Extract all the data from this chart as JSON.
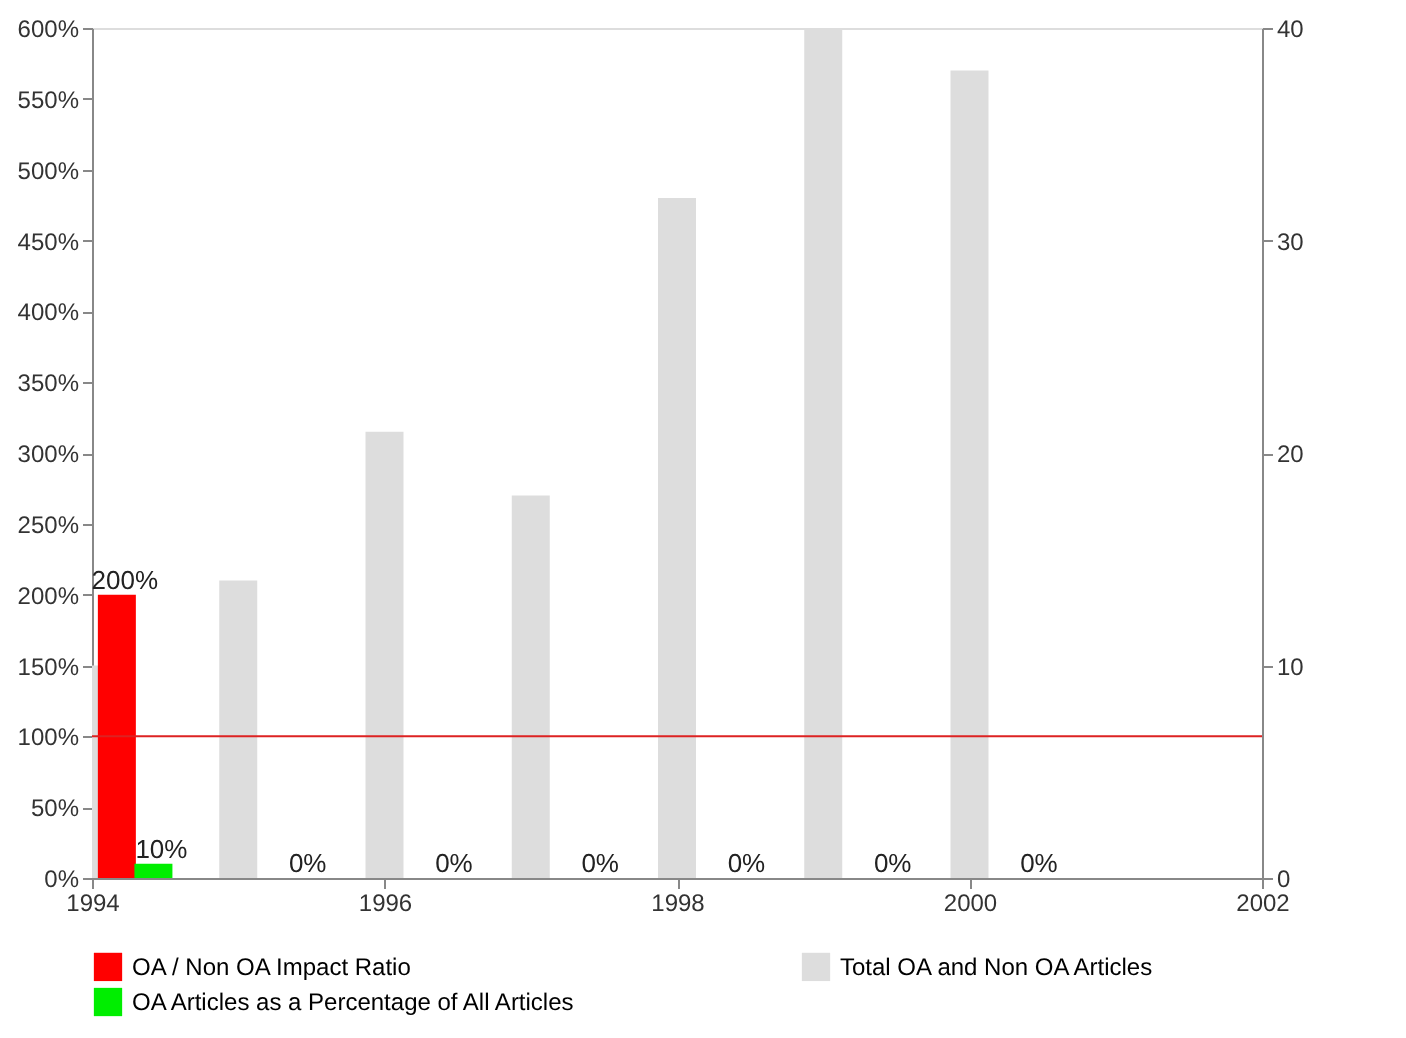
{
  "chart_data": {
    "type": "bar",
    "xlim": [
      1994,
      2002
    ],
    "xticks": [
      1994,
      1996,
      1998,
      2000,
      2002
    ],
    "ylim": [
      0,
      600
    ],
    "yticks": [
      {
        "value": 0,
        "label": "0%"
      },
      {
        "value": 50,
        "label": "50%"
      },
      {
        "value": 100,
        "label": "100%"
      },
      {
        "value": 150,
        "label": "150%"
      },
      {
        "value": 200,
        "label": "200%"
      },
      {
        "value": 250,
        "label": "250%"
      },
      {
        "value": 300,
        "label": "300%"
      },
      {
        "value": 350,
        "label": "350%"
      },
      {
        "value": 400,
        "label": "400%"
      },
      {
        "value": 450,
        "label": "450%"
      },
      {
        "value": 500,
        "label": "500%"
      },
      {
        "value": 550,
        "label": "550%"
      },
      {
        "value": 600,
        "label": "600%"
      }
    ],
    "y2lim": [
      0,
      40
    ],
    "y2ticks": [
      0,
      10,
      20,
      30,
      40
    ],
    "series": [
      {
        "name": "OA / Non OA Impact Ratio",
        "color": "#ff0000",
        "x": [
          1994.17
        ],
        "values": [
          200
        ],
        "value_labels": [
          "200%"
        ]
      },
      {
        "name": "Total OA and Non OA Articles",
        "color": "#dddddd",
        "axis": "y2",
        "x": [
          1994,
          1995,
          1996,
          1997,
          1998,
          1999,
          2000
        ],
        "values": [
          10,
          14,
          21,
          18,
          32,
          40,
          38
        ]
      },
      {
        "name": "OA Articles as a Percentage of All Articles",
        "color": "#00ee00",
        "x": [
          1994.42,
          1995.42,
          1996.42,
          1997.42,
          1998.42,
          1999.42,
          2000.42
        ],
        "values": [
          10,
          0,
          0,
          0,
          0,
          0,
          0
        ],
        "value_labels": [
          "10%",
          "0%",
          "0%",
          "0%",
          "0%",
          "0%",
          "0%"
        ]
      }
    ],
    "ref_lines": [
      {
        "axis": "y",
        "value": 100,
        "color": "#dd2222"
      }
    ],
    "grid": false,
    "legend": "bottom"
  }
}
